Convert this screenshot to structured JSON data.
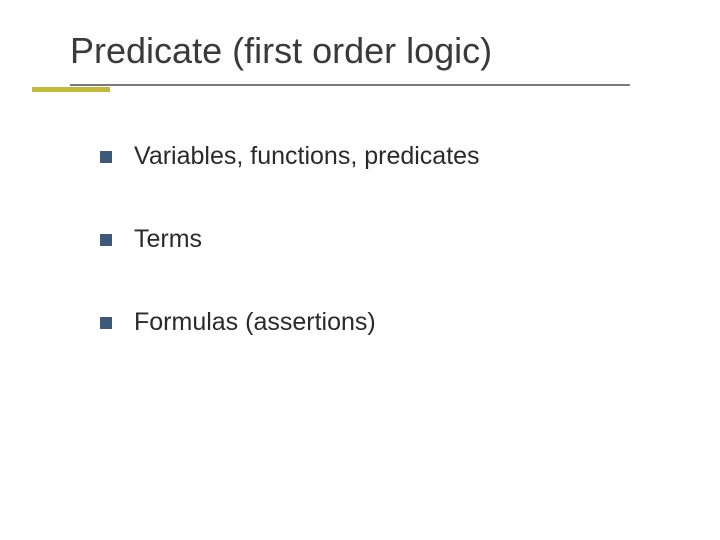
{
  "slide": {
    "title": "Predicate (first order logic)",
    "title_color": "#3a3a3a",
    "title_fontsize": 36,
    "underline": {
      "long_color": "#7a7a7a",
      "short_color": "#c4b838"
    },
    "bullets": [
      {
        "text": "Variables, functions, predicates"
      },
      {
        "text": "Terms"
      },
      {
        "text": "Formulas (assertions)"
      }
    ],
    "bullet_square_color": "#3a5a78",
    "bullet_text_color": "#2a2a2a",
    "bullet_fontsize": 25,
    "background_color": "#ffffff"
  }
}
